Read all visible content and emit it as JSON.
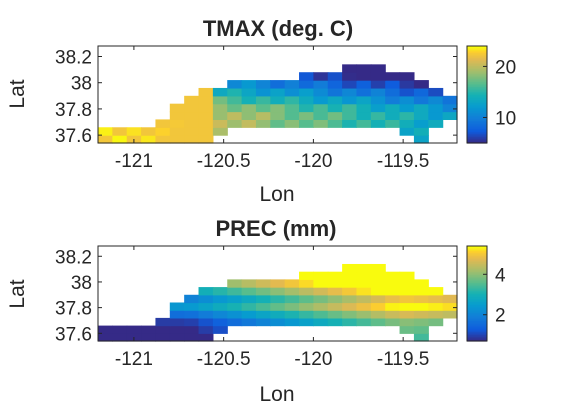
{
  "chart_data": [
    {
      "type": "heatmap",
      "title": "TMAX (deg. C)",
      "xlabel": "Lon",
      "ylabel": "Lat",
      "xlim": [
        -121.2,
        -119.2
      ],
      "ylim": [
        37.54,
        38.28
      ],
      "xticks": [
        "-121",
        "-120.5",
        "-120",
        "-119.5"
      ],
      "yticks": [
        "37.6",
        "37.8",
        "38",
        "38.2"
      ],
      "colorbar": {
        "ticks": [
          "10",
          "20"
        ],
        "range": [
          5,
          24
        ]
      },
      "colormap": "parula",
      "value_range_shown": [
        5,
        24
      ],
      "peak_region": "southwest lowlands (~23 deg. C)",
      "low_region": "northeast highlands (~6 deg. C)"
    },
    {
      "type": "heatmap",
      "title": "PREC (mm)",
      "xlabel": "Lon",
      "ylabel": "Lat",
      "xlim": [
        -121.2,
        -119.2
      ],
      "ylim": [
        37.54,
        38.28
      ],
      "xticks": [
        "-121",
        "-120.5",
        "-120",
        "-119.5"
      ],
      "yticks": [
        "37.6",
        "37.8",
        "38",
        "38.2"
      ],
      "colorbar": {
        "ticks": [
          "2",
          "4"
        ],
        "range": [
          0.7,
          5.4
        ]
      },
      "colormap": "parula",
      "value_range_shown": [
        0.7,
        5.4
      ],
      "peak_region": "northern highlands near -119.7 (~5.2 mm)",
      "low_region": "southwest lowlands (~1 mm)"
    }
  ]
}
